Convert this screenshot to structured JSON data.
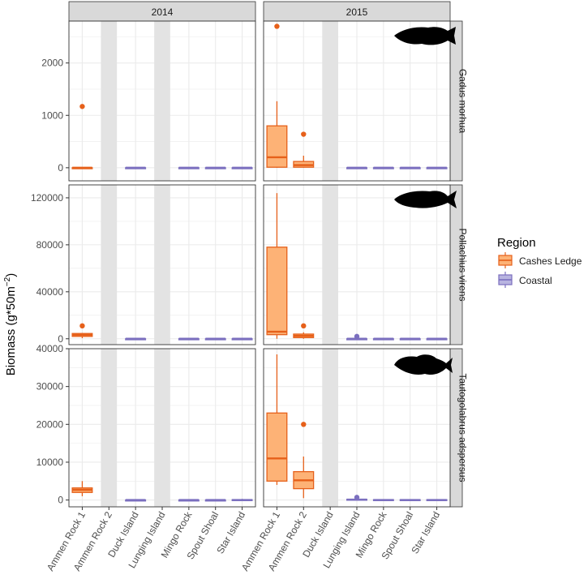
{
  "chart_data": {
    "type": "boxplot",
    "facet_columns": [
      "2014",
      "2015"
    ],
    "facet_rows": [
      "Gadus morhua",
      "Pollachius virens",
      "Tautogolabrus adspersus"
    ],
    "categories": [
      "Ammen Rock 1",
      "Ammen Rock 2",
      "Duck Island",
      "Lunging Island",
      "Mingo Rock",
      "Spout Shoal",
      "Star Island"
    ],
    "category_region": [
      "Cashes Ledge",
      "Cashes Ledge",
      "Coastal",
      "Coastal",
      "Coastal",
      "Coastal",
      "Coastal"
    ],
    "ylabel_main": "Biomass (g*50m",
    "ylabel_exp": "−2",
    "ylabel_close": ")",
    "legend": {
      "title": "Region",
      "entries": [
        {
          "name": "Cashes Ledge",
          "fill": "#fdb276",
          "stroke": "#e6601a"
        },
        {
          "name": "Coastal",
          "fill": "#b8b4e0",
          "stroke": "#7b6fbf"
        }
      ],
      "position": "right"
    },
    "panels": [
      {
        "row": "Gadus morhua",
        "col": "2014",
        "ylim": [
          -250,
          2800
        ],
        "yticks": [
          0,
          1000,
          2000
        ],
        "ytick_labels": [
          "0",
          "1000",
          "2000"
        ],
        "no_data": [
          "Ammen Rock 2",
          "Lunging Island"
        ],
        "boxes": [
          {
            "cat": "Ammen Rock 1",
            "min": 0,
            "q1": 0,
            "median": 0,
            "q3": 0,
            "max": 0,
            "outliers": [
              1170
            ]
          },
          {
            "cat": "Duck Island",
            "min": 0,
            "q1": 0,
            "median": 0,
            "q3": 0,
            "max": 0,
            "outliers": []
          },
          {
            "cat": "Mingo Rock",
            "min": 0,
            "q1": 0,
            "median": 0,
            "q3": 0,
            "max": 0,
            "outliers": []
          },
          {
            "cat": "Spout Shoal",
            "min": 0,
            "q1": 0,
            "median": 0,
            "q3": 0,
            "max": 0,
            "outliers": []
          },
          {
            "cat": "Star Island",
            "min": 0,
            "q1": 0,
            "median": 0,
            "q3": 0,
            "max": 0,
            "outliers": []
          }
        ]
      },
      {
        "row": "Gadus morhua",
        "col": "2015",
        "ylim": [
          -250,
          2800
        ],
        "yticks": [
          0,
          1000,
          2000
        ],
        "ytick_labels": [
          "0",
          "1000",
          "2000"
        ],
        "no_data": [
          "Duck Island"
        ],
        "boxes": [
          {
            "cat": "Ammen Rock 1",
            "min": 0,
            "q1": 10,
            "median": 200,
            "q3": 800,
            "max": 1270,
            "outliers": [
              2700
            ]
          },
          {
            "cat": "Ammen Rock 2",
            "min": 0,
            "q1": 10,
            "median": 50,
            "q3": 120,
            "max": 230,
            "outliers": [
              640
            ]
          },
          {
            "cat": "Lunging Island",
            "min": 0,
            "q1": 0,
            "median": 0,
            "q3": 0,
            "max": 0,
            "outliers": []
          },
          {
            "cat": "Mingo Rock",
            "min": 0,
            "q1": 0,
            "median": 0,
            "q3": 0,
            "max": 0,
            "outliers": []
          },
          {
            "cat": "Spout Shoal",
            "min": 0,
            "q1": 0,
            "median": 0,
            "q3": 0,
            "max": 0,
            "outliers": []
          },
          {
            "cat": "Star Island",
            "min": 0,
            "q1": 0,
            "median": 0,
            "q3": 0,
            "max": 0,
            "outliers": []
          }
        ]
      },
      {
        "row": "Pollachius virens",
        "col": "2014",
        "ylim": [
          -5000,
          131000
        ],
        "yticks": [
          0,
          40000,
          80000,
          120000
        ],
        "ytick_labels": [
          "0",
          "40000",
          "80000",
          "120000"
        ],
        "no_data": [
          "Ammen Rock 2",
          "Lunging Island"
        ],
        "boxes": [
          {
            "cat": "Ammen Rock 1",
            "min": 500,
            "q1": 2000,
            "median": 3300,
            "q3": 4500,
            "max": 5000,
            "outliers": [
              11000
            ]
          },
          {
            "cat": "Duck Island",
            "min": 0,
            "q1": 0,
            "median": 0,
            "q3": 0,
            "max": 0,
            "outliers": []
          },
          {
            "cat": "Mingo Rock",
            "min": 0,
            "q1": 0,
            "median": 0,
            "q3": 0,
            "max": 0,
            "outliers": []
          },
          {
            "cat": "Spout Shoal",
            "min": 0,
            "q1": 0,
            "median": 0,
            "q3": 0,
            "max": 0,
            "outliers": []
          },
          {
            "cat": "Star Island",
            "min": 0,
            "q1": 0,
            "median": 0,
            "q3": 0,
            "max": 0,
            "outliers": []
          }
        ]
      },
      {
        "row": "Pollachius virens",
        "col": "2015",
        "ylim": [
          -5000,
          131000
        ],
        "yticks": [
          0,
          40000,
          80000,
          120000
        ],
        "ytick_labels": [
          "0",
          "40000",
          "80000",
          "120000"
        ],
        "no_data": [
          "Duck Island"
        ],
        "boxes": [
          {
            "cat": "Ammen Rock 1",
            "min": 0,
            "q1": 3500,
            "median": 6000,
            "q3": 78000,
            "max": 124000,
            "outliers": []
          },
          {
            "cat": "Ammen Rock 2",
            "min": 0,
            "q1": 1000,
            "median": 2500,
            "q3": 4000,
            "max": 5500,
            "outliers": [
              11000
            ]
          },
          {
            "cat": "Lunging Island",
            "min": 0,
            "q1": 0,
            "median": 0,
            "q3": 0,
            "max": 0,
            "outliers": [
              2000
            ]
          },
          {
            "cat": "Mingo Rock",
            "min": 0,
            "q1": 0,
            "median": 0,
            "q3": 0,
            "max": 0,
            "outliers": []
          },
          {
            "cat": "Spout Shoal",
            "min": 0,
            "q1": 0,
            "median": 0,
            "q3": 0,
            "max": 0,
            "outliers": []
          },
          {
            "cat": "Star Island",
            "min": 0,
            "q1": 0,
            "median": 0,
            "q3": 0,
            "max": 0,
            "outliers": []
          }
        ]
      },
      {
        "row": "Tautogolabrus adspersus",
        "col": "2014",
        "ylim": [
          -1800,
          40000
        ],
        "yticks": [
          0,
          10000,
          20000,
          30000,
          40000
        ],
        "ytick_labels": [
          "0",
          "10000",
          "20000",
          "30000",
          "40000"
        ],
        "no_data": [
          "Ammen Rock 2",
          "Lunging Island"
        ],
        "boxes": [
          {
            "cat": "Ammen Rock 1",
            "min": 1000,
            "q1": 2000,
            "median": 2700,
            "q3": 3200,
            "max": 5000,
            "outliers": []
          },
          {
            "cat": "Duck Island",
            "min": 0,
            "q1": 0,
            "median": 0,
            "q3": 0,
            "max": 0,
            "outliers": []
          },
          {
            "cat": "Mingo Rock",
            "min": 0,
            "q1": 0,
            "median": 0,
            "q3": 0,
            "max": 0,
            "outliers": []
          },
          {
            "cat": "Spout Shoal",
            "min": 0,
            "q1": 0,
            "median": 0,
            "q3": 0,
            "max": 0,
            "outliers": []
          },
          {
            "cat": "Star Island",
            "min": 0,
            "q1": 0,
            "median": 0,
            "q3": 100,
            "max": 300,
            "outliers": []
          }
        ]
      },
      {
        "row": "Tautogolabrus adspersus",
        "col": "2015",
        "ylim": [
          -1800,
          40000
        ],
        "yticks": [
          0,
          10000,
          20000,
          30000,
          40000
        ],
        "ytick_labels": [
          "0",
          "10000",
          "20000",
          "30000",
          "40000"
        ],
        "no_data": [
          "Duck Island"
        ],
        "boxes": [
          {
            "cat": "Ammen Rock 1",
            "min": 4000,
            "q1": 5000,
            "median": 11000,
            "q3": 23000,
            "max": 38500,
            "outliers": []
          },
          {
            "cat": "Ammen Rock 2",
            "min": 500,
            "q1": 3000,
            "median": 5200,
            "q3": 7500,
            "max": 11500,
            "outliers": [
              20000
            ]
          },
          {
            "cat": "Lunging Island",
            "min": 0,
            "q1": 0,
            "median": 100,
            "q3": 200,
            "max": 400,
            "outliers": [
              700
            ]
          },
          {
            "cat": "Mingo Rock",
            "min": 0,
            "q1": 0,
            "median": 0,
            "q3": 100,
            "max": 200,
            "outliers": []
          },
          {
            "cat": "Spout Shoal",
            "min": 0,
            "q1": 0,
            "median": 0,
            "q3": 100,
            "max": 200,
            "outliers": []
          },
          {
            "cat": "Star Island",
            "min": 0,
            "q1": 0,
            "median": 0,
            "q3": 100,
            "max": 200,
            "outliers": []
          }
        ]
      }
    ],
    "panel_background": "#ffffff",
    "gridline_color": "#ebebeb",
    "no_data_band_color": "#e3e3e3",
    "strip_fill": "#d9d9d9",
    "silhouette_color": "#000000",
    "silhouette_icons": [
      "cod-silhouette-icon",
      "pollock-silhouette-icon",
      "cunner-silhouette-icon"
    ]
  }
}
